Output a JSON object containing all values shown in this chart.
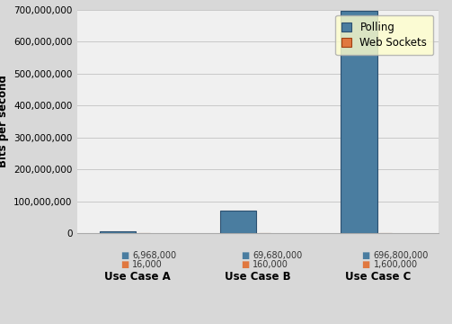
{
  "categories": [
    "Use Case A",
    "Use Case B",
    "Use Case C"
  ],
  "polling_values": [
    6968000,
    69680000,
    696800000
  ],
  "websocket_values": [
    16000,
    160000,
    1600000
  ],
  "polling_labels": [
    "6,968,000",
    "69,680,000",
    "696,800,000"
  ],
  "websocket_labels": [
    "16,000",
    "160,000",
    "1,600,000"
  ],
  "polling_color": "#4a7da0",
  "websocket_color": "#e07840",
  "polling_edge_color": "#2c5070",
  "websocket_edge_color": "#a04010",
  "legend_labels": [
    "Polling",
    "Web Sockets"
  ],
  "ylabel": "Bits per second",
  "ylim": [
    0,
    700000000
  ],
  "yticks": [
    0,
    100000000,
    200000000,
    300000000,
    400000000,
    500000000,
    600000000,
    700000000
  ],
  "figure_bg_color": "#d8d8d8",
  "plot_bg_color": "#f0f0f0",
  "legend_bg_color": "#ffffcc",
  "axis_fontsize": 8.5,
  "tick_fontsize": 7.5,
  "legend_fontsize": 8.5,
  "label_fontsize": 7,
  "cat_fontsize": 8.5,
  "polling_bar_width": 0.3,
  "ws_bar_width": 0.1
}
